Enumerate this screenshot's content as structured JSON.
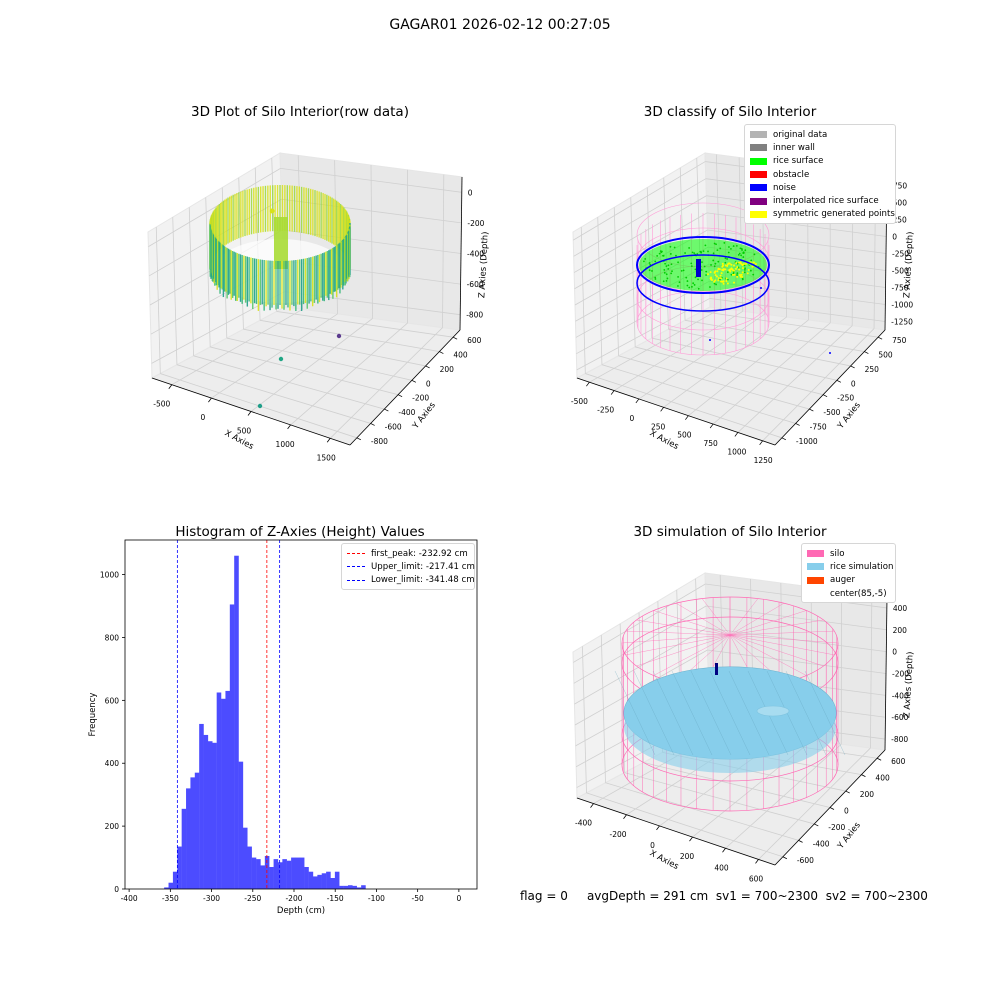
{
  "figure_title": "GAGAR01 2026-02-12 00:27:05",
  "footer": {
    "flag": "flag = 0",
    "avg_depth": "avgDepth = 291 cm",
    "sv1": "sv1 = 700~2300",
    "sv2": "sv2 = 700~2300"
  },
  "chart_data": [
    {
      "type": "scatter3d",
      "title": "3D Plot of Silo Interior(row data)",
      "xlabel": "X Axies",
      "ylabel": "Y Axies",
      "zlabel": "Z Axies (Depth)",
      "x_ticks": [
        "-500",
        "0",
        "500",
        "1000",
        "1500"
      ],
      "y_ticks": [
        "-800",
        "-600",
        "-400",
        "-200",
        "0",
        "200",
        "400",
        "600"
      ],
      "z_ticks": [
        "0",
        "-200",
        "-400",
        "-600",
        "-800"
      ],
      "colormap": "viridis",
      "colors": {
        "low": "#1f9e89",
        "high": "#d8e219"
      },
      "outliers": [
        {
          "x": -200,
          "y": -400,
          "z": -800,
          "color": "#1f9e89"
        },
        {
          "x": 300,
          "y": -100,
          "z": -700,
          "color": "#21a685"
        },
        {
          "x": 1300,
          "y": 300,
          "z": -850,
          "color": "#5b3a8e"
        }
      ]
    },
    {
      "type": "scatter3d",
      "title": "3D classify of Silo Interior",
      "xlabel": "X Axies",
      "ylabel": "Y Axies",
      "zlabel": "Z Axies (Depth)",
      "x_ticks": [
        "-500",
        "-250",
        "0",
        "250",
        "500",
        "750",
        "1000",
        "1250"
      ],
      "y_ticks": [
        "-1000",
        "-750",
        "-500",
        "-250",
        "0",
        "250",
        "500",
        "750"
      ],
      "z_ticks": [
        "750",
        "500",
        "250",
        "0",
        "-250",
        "-500",
        "-750",
        "-1000",
        "-1250"
      ],
      "legend": [
        {
          "label": "original data",
          "color": "#b3b3b3"
        },
        {
          "label": "inner wall",
          "color": "#808080"
        },
        {
          "label": "rice surface",
          "color": "#00ff00"
        },
        {
          "label": "obstacle",
          "color": "#ff0000"
        },
        {
          "label": "noise",
          "color": "#0000ff"
        },
        {
          "label": "interpolated rice surface",
          "color": "#800080"
        },
        {
          "label": "symmetric generated points",
          "color": "#ffff00"
        }
      ]
    },
    {
      "type": "bar",
      "title": "Histogram of Z-Axies (Height) Values",
      "xlabel": "Depth (cm)",
      "ylabel": "Frequency",
      "xlim": [
        -405,
        22
      ],
      "ylim": [
        0,
        1110
      ],
      "x_ticks": [
        -400,
        -350,
        -300,
        -250,
        -200,
        -150,
        -100,
        -50,
        0
      ],
      "y_ticks": [
        0,
        200,
        400,
        600,
        800,
        1000
      ],
      "bar_color": "#4c4cff",
      "bin_start": -357.5,
      "bin_width": 5.31,
      "values": [
        5,
        20,
        55,
        135,
        255,
        320,
        355,
        370,
        525,
        490,
        470,
        465,
        625,
        605,
        630,
        905,
        1060,
        405,
        195,
        135,
        100,
        95,
        75,
        105,
        70,
        95,
        85,
        95,
        90,
        100,
        100,
        100,
        70,
        55,
        40,
        45,
        50,
        55,
        35,
        55,
        10,
        10,
        12,
        10,
        5,
        12
      ],
      "lines": [
        {
          "label": "first_peak: -232.92 cm",
          "x": -232.92,
          "color": "#ff0000"
        },
        {
          "label": "Upper_limit: -217.41 cm",
          "x": -217.41,
          "color": "#0000ff"
        },
        {
          "label": "Lower_limit: -341.48 cm",
          "x": -341.48,
          "color": "#0000ff"
        }
      ]
    },
    {
      "type": "surface3d",
      "title": "3D simulation of Silo Interior",
      "xlabel": "X Axies",
      "ylabel": "Y Axies",
      "zlabel": "Z Axies (Depth)",
      "x_ticks": [
        "-400",
        "-200",
        "0",
        "200",
        "400",
        "600"
      ],
      "y_ticks": [
        "-600",
        "-400",
        "-200",
        "0",
        "200",
        "400",
        "600"
      ],
      "z_ticks": [
        "400",
        "200",
        "0",
        "-200",
        "-400",
        "-600",
        "-800"
      ],
      "legend": [
        {
          "label": "silo",
          "color": "#ff69b4"
        },
        {
          "label": "rice simulation",
          "color": "#87ceeb"
        },
        {
          "label": "auger",
          "color": "#ff4500"
        },
        {
          "label": "center(85,-5)",
          "color": "#ffffff"
        }
      ]
    }
  ]
}
